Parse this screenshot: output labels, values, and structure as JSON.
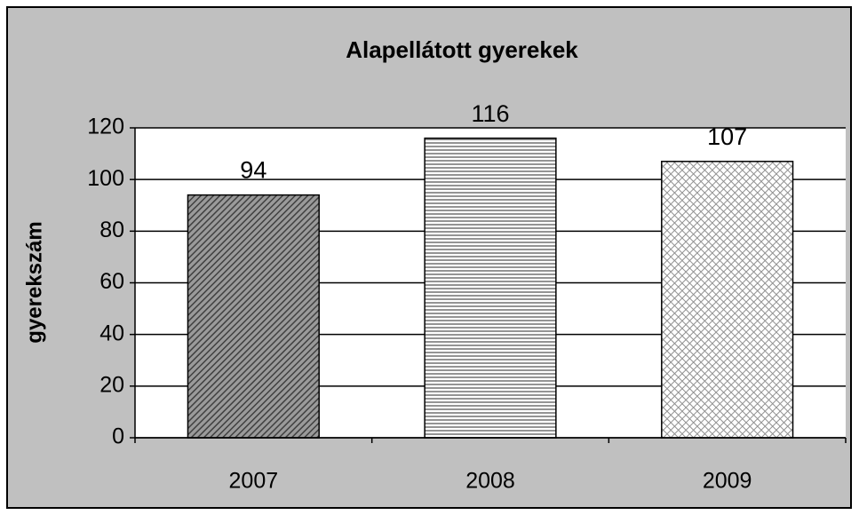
{
  "chart_data": {
    "type": "bar",
    "title": "Alapellátott gyerekek",
    "ylabel": "gyerekszám",
    "categories": [
      "2007",
      "2008",
      "2009"
    ],
    "values": [
      94,
      116,
      107
    ],
    "colors": [
      "#808080",
      "#ffffff",
      "#ffffff"
    ],
    "patterns": [
      "diagonal",
      "horizontal",
      "crosshatch"
    ],
    "ylim": [
      0,
      120
    ],
    "yticks": [
      0,
      20,
      40,
      60,
      80,
      100,
      120
    ],
    "grid": true
  }
}
